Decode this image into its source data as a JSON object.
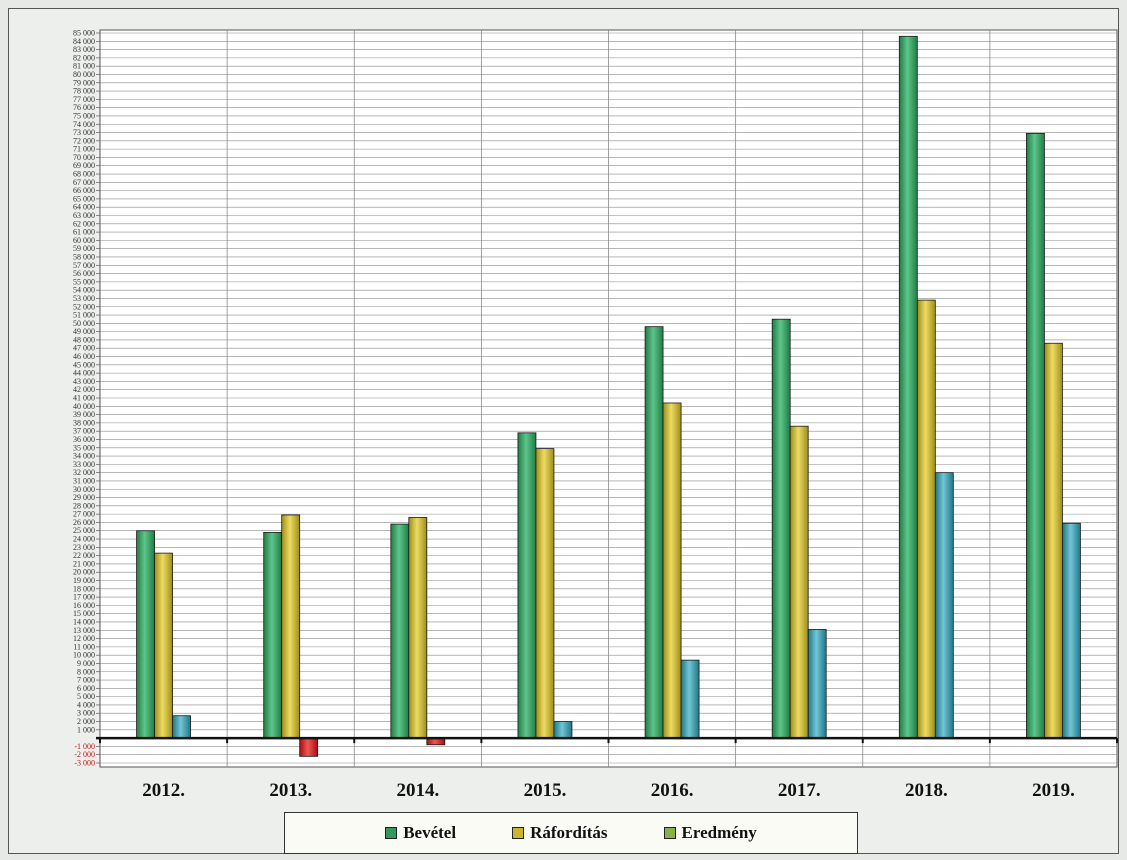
{
  "chart_data": {
    "type": "bar",
    "categories": [
      "2012.",
      "2013.",
      "2014.",
      "2015.",
      "2016.",
      "2017.",
      "2018.",
      "2019."
    ],
    "series": [
      {
        "name": "Bevétel",
        "color": "#2f9a5c",
        "values": [
          25000,
          24800,
          25800,
          36800,
          49600,
          50500,
          84600,
          72900
        ]
      },
      {
        "name": "Ráfordítás",
        "color": "#c8b52f",
        "values": [
          22300,
          26900,
          26600,
          34900,
          40400,
          37600,
          52800,
          47600
        ]
      },
      {
        "name": "Eredmény",
        "color": "#3a99aa",
        "negative_color": "#d42222",
        "values": [
          2700,
          -2200,
          -800,
          2000,
          9400,
          13100,
          32000,
          25900
        ]
      }
    ],
    "ylim": [
      -3000,
      85000
    ],
    "ytick_step": 1000,
    "grid": true,
    "legend_position": "bottom"
  }
}
